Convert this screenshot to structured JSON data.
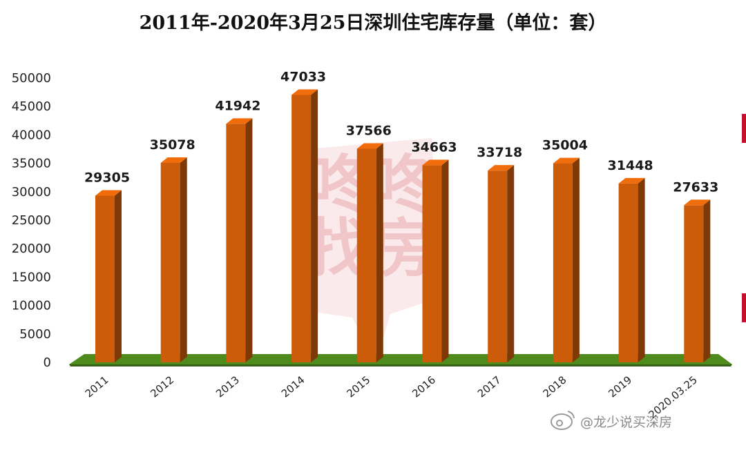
{
  "chart_data": {
    "type": "bar",
    "title": "2011年-2020年3月25日深圳住宅库存量（单位：套）",
    "categories": [
      "2011",
      "2012",
      "2013",
      "2014",
      "2015",
      "2016",
      "2017",
      "2018",
      "2019",
      "2020.03.25"
    ],
    "values": [
      29305,
      35078,
      41942,
      47033,
      37566,
      34663,
      33718,
      35004,
      31448,
      27633
    ],
    "ylim": [
      0,
      50000
    ],
    "yticks": [
      0,
      5000,
      10000,
      15000,
      20000,
      25000,
      30000,
      35000,
      40000,
      45000,
      50000
    ],
    "grid": false,
    "legend": "none",
    "bar_color": "#cc5c0a",
    "floor_color": "#4e8a1c"
  },
  "watermark": {
    "line1": "咚咚",
    "line2": "找房",
    "color": "#e9a9ad"
  },
  "credit": {
    "text": "@龙少说买深房"
  }
}
